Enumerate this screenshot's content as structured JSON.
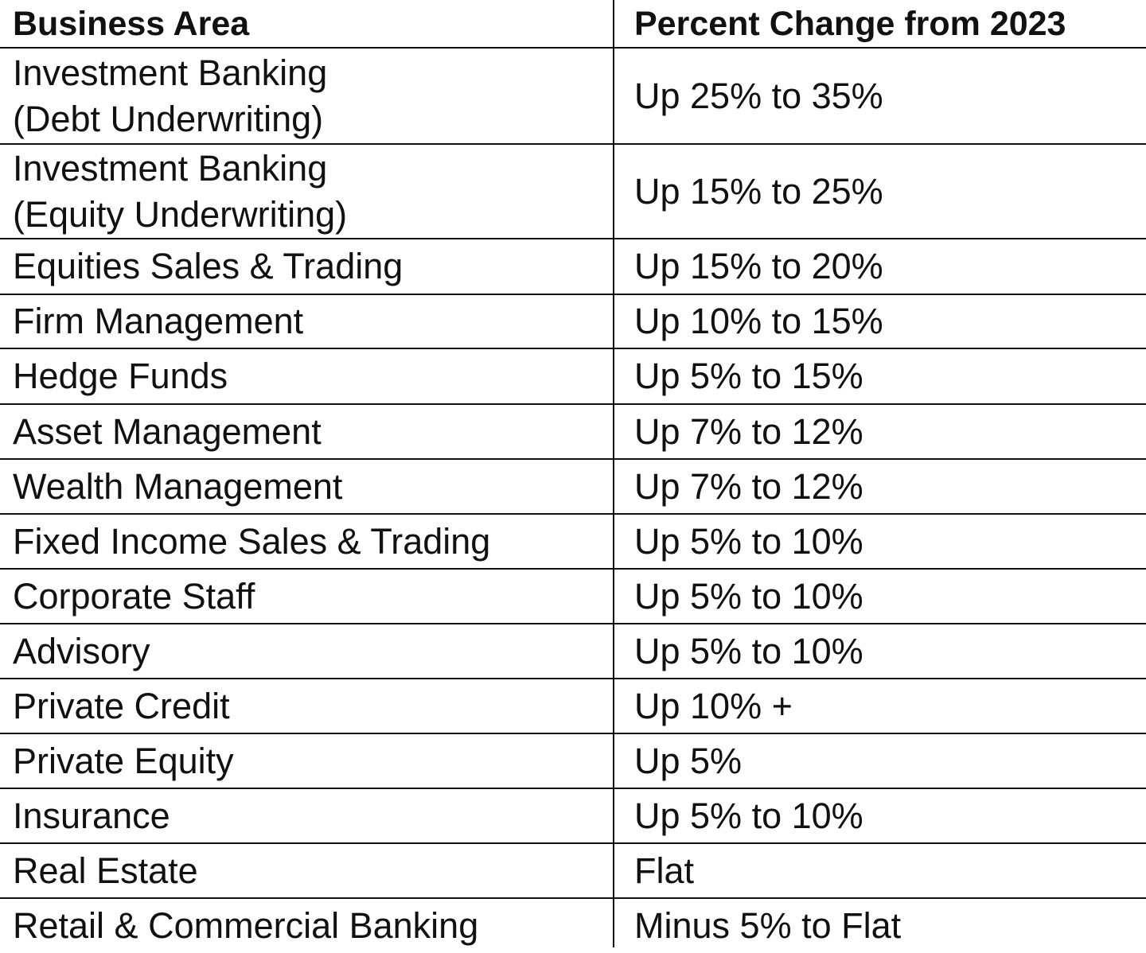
{
  "table": {
    "columns": [
      "Business Area",
      "Percent Change from 2023"
    ],
    "rows": [
      [
        "Investment Banking\n(Debt Underwriting)",
        "Up 25% to 35%"
      ],
      [
        "Investment Banking\n(Equity Underwriting)",
        "Up 15% to 25%"
      ],
      [
        "Equities Sales & Trading",
        "Up 15% to 20%"
      ],
      [
        "Firm Management",
        "Up 10% to 15%"
      ],
      [
        "Hedge Funds",
        "Up 5% to 15%"
      ],
      [
        "Asset Management",
        "Up 7% to 12%"
      ],
      [
        "Wealth Management",
        "Up 7% to 12%"
      ],
      [
        "Fixed Income Sales & Trading",
        "Up 5% to 10%"
      ],
      [
        "Corporate Staff",
        "Up 5% to 10%"
      ],
      [
        "Advisory",
        "Up 5% to 10%"
      ],
      [
        "Private Credit",
        "Up 10% +"
      ],
      [
        "Private Equity",
        "Up 5%"
      ],
      [
        "Insurance",
        "Up 5% to 10%"
      ],
      [
        "Real Estate",
        "Flat"
      ],
      [
        "Retail & Commercial Banking",
        "Minus 5% to Flat"
      ]
    ]
  }
}
